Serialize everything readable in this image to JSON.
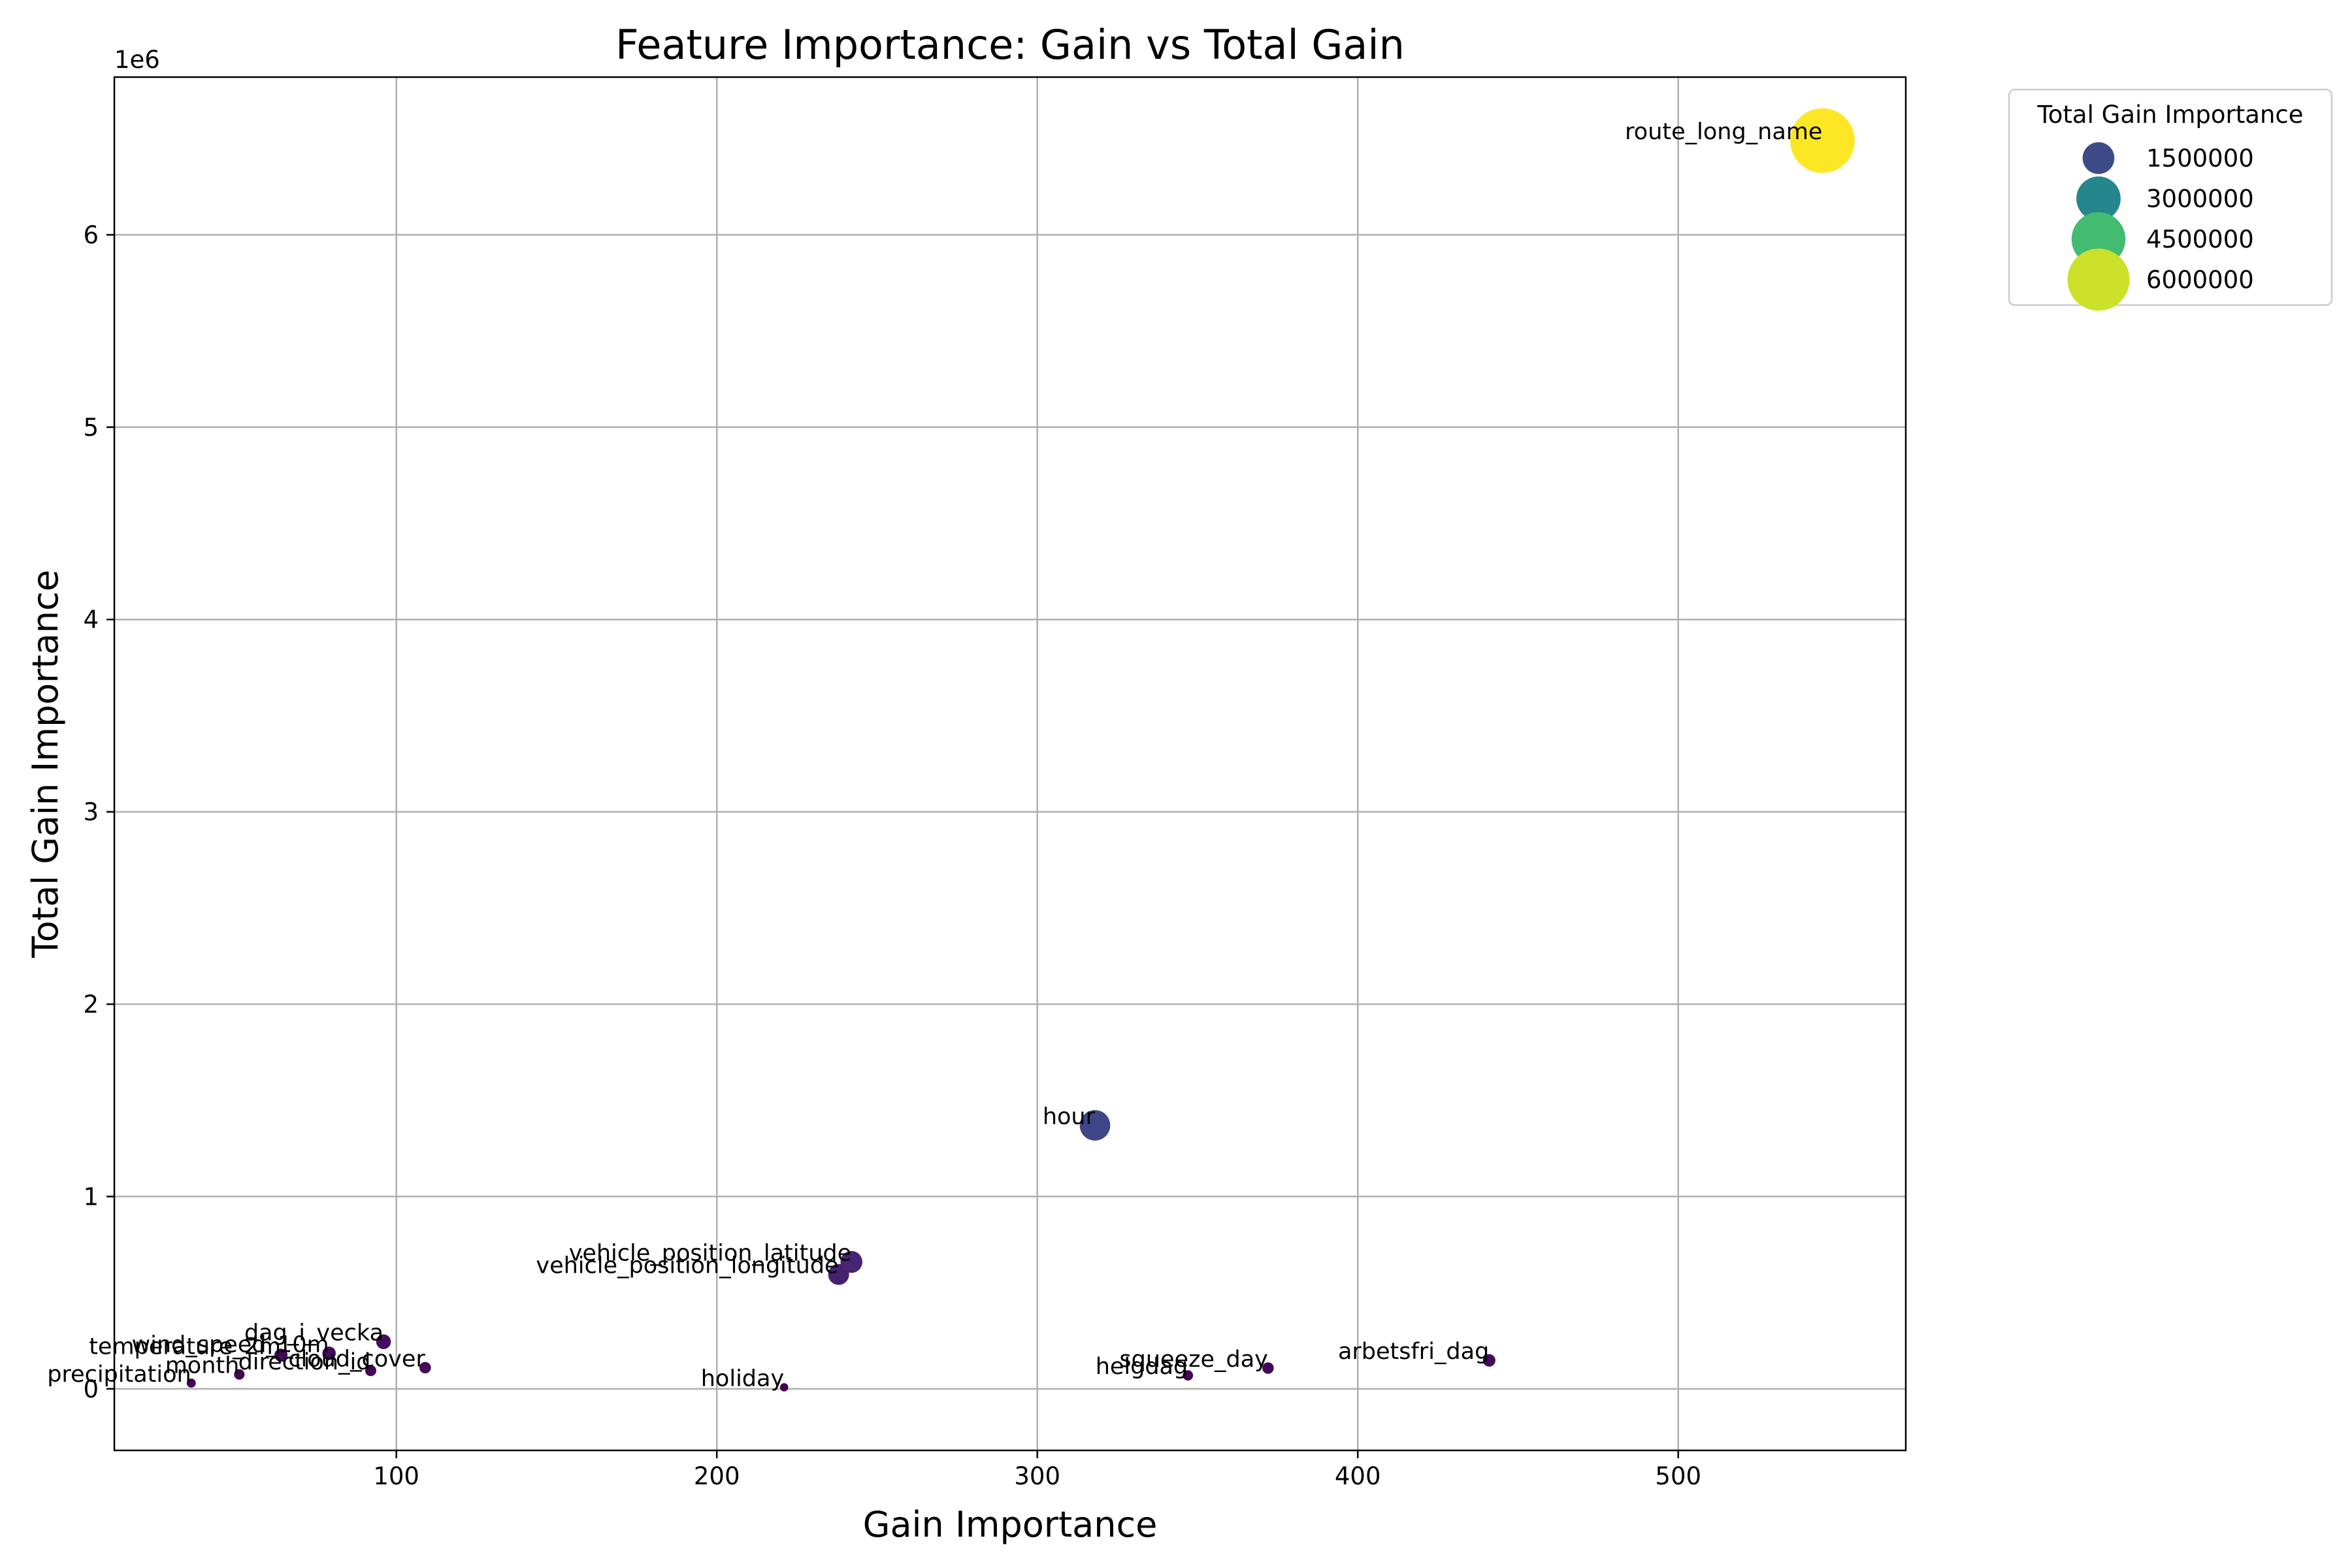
{
  "chart_data": {
    "type": "scatter",
    "title": "Feature Importance: Gain vs Total Gain",
    "xlabel": "Gain Importance",
    "ylabel": "Total Gain Importance",
    "y_offset_label": "1e6",
    "xlim": [
      12,
      571
    ],
    "ylim": [
      -320000,
      6820000
    ],
    "xticks": [
      100,
      200,
      300,
      400,
      500
    ],
    "yticks": [
      0,
      1000000,
      2000000,
      3000000,
      4000000,
      5000000,
      6000000
    ],
    "ytick_labels": [
      "0",
      "1",
      "2",
      "3",
      "4",
      "5",
      "6"
    ],
    "grid": true,
    "colormap": "viridis",
    "legend": {
      "title": "Total Gain Importance",
      "placement": "outside-top-right",
      "entries": [
        {
          "label": "1500000",
          "value": 1500000
        },
        {
          "label": "3000000",
          "value": 3000000
        },
        {
          "label": "4500000",
          "value": 4500000
        },
        {
          "label": "6000000",
          "value": 6000000
        }
      ]
    },
    "points": [
      {
        "name": "route_long_name",
        "x": 545,
        "y": 6490000
      },
      {
        "name": "hour",
        "x": 318,
        "y": 1370000
      },
      {
        "name": "vehicle_position_latitude",
        "x": 242,
        "y": 660000
      },
      {
        "name": "vehicle_position_longitude",
        "x": 238,
        "y": 595000
      },
      {
        "name": "arbetsfri_dag",
        "x": 441,
        "y": 148000
      },
      {
        "name": "squeeze_day",
        "x": 372,
        "y": 108000
      },
      {
        "name": "helgdag",
        "x": 347,
        "y": 70000
      },
      {
        "name": "holiday",
        "x": 221,
        "y": 8000
      },
      {
        "name": "dag_i_vecka",
        "x": 96,
        "y": 245000
      },
      {
        "name": "wind_speed_10m",
        "x": 79,
        "y": 185000
      },
      {
        "name": "temperature_2m",
        "x": 64,
        "y": 175000
      },
      {
        "name": "cloud_cover",
        "x": 109,
        "y": 110000
      },
      {
        "name": "direction_id",
        "x": 92,
        "y": 95000
      },
      {
        "name": "month",
        "x": 51,
        "y": 75000
      },
      {
        "name": "precipitation",
        "x": 36,
        "y": 30000
      }
    ]
  }
}
